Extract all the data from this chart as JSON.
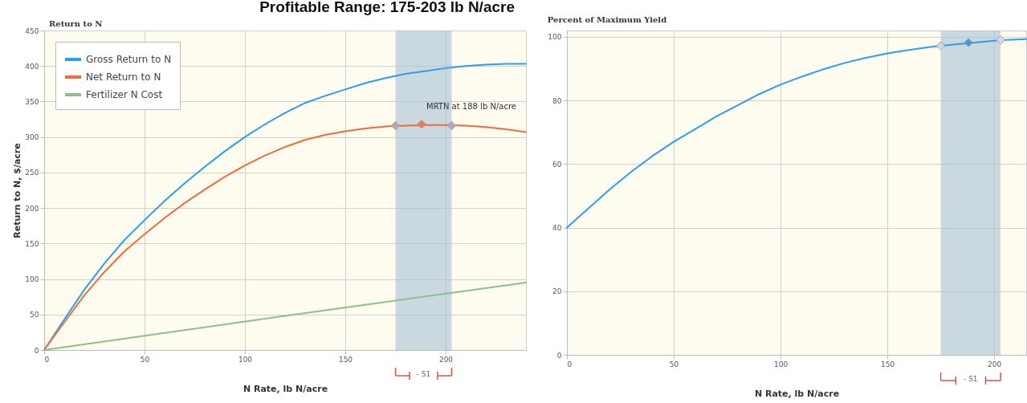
{
  "chart_data": [
    {
      "type": "line",
      "title": "Profitable Range: 175-203 lb N/acre",
      "subtitle": "Return to N",
      "xlabel": "N Rate, lb N/acre",
      "ylabel": "Return to N, $/acre",
      "xlim": [
        0,
        240
      ],
      "ylim": [
        0,
        450
      ],
      "xticks": [
        0,
        50,
        100,
        150,
        200
      ],
      "yticks": [
        0,
        50,
        100,
        150,
        200,
        250,
        300,
        350,
        400,
        450
      ],
      "grid": true,
      "legend": "top left",
      "line_style": "solid",
      "marker": "none",
      "series": [
        {
          "name": "Gross Return to N",
          "color": "#2a9df4",
          "x": [
            0,
            10,
            20,
            30,
            40,
            50,
            60,
            70,
            80,
            90,
            100,
            110,
            120,
            130,
            140,
            150,
            160,
            170,
            180,
            190,
            200,
            210,
            220,
            230,
            240
          ],
          "values": [
            0,
            43,
            85,
            122,
            155,
            183,
            210,
            235,
            258,
            280,
            300,
            318,
            334,
            348,
            358,
            367,
            376,
            383,
            389,
            393,
            397,
            400,
            402,
            403,
            403
          ]
        },
        {
          "name": "Net Return to N",
          "color": "#f26b3a",
          "x": [
            0,
            10,
            20,
            30,
            40,
            50,
            60,
            70,
            80,
            90,
            100,
            110,
            120,
            130,
            140,
            150,
            160,
            170,
            180,
            190,
            200,
            210,
            220,
            230,
            240
          ],
          "values": [
            0,
            39,
            77,
            110,
            139,
            163,
            186,
            207,
            226,
            244,
            260,
            274,
            286,
            296,
            303,
            308,
            312,
            315,
            316,
            317,
            317,
            316,
            314,
            311,
            307
          ]
        },
        {
          "name": "Fertilizer N Cost",
          "color": "#8cc08a",
          "x": [
            0,
            120,
            240
          ],
          "values": [
            0,
            48,
            95
          ]
        },
        {
          "type": "scatter",
          "marker": "diamond",
          "x": [
            175,
            188,
            203
          ],
          "values": [
            316,
            318,
            316
          ],
          "colors": [
            "#b9a3bd",
            "#f07a50",
            "#b9a3bd"
          ]
        }
      ],
      "bands": [
        {
          "axis": "x",
          "from": 175,
          "to": 203,
          "color": "#a9bfd6"
        }
      ],
      "annotations": [
        {
          "text": "MRTN at 188 lb N/acre",
          "x": 188,
          "y": 318
        },
        "- S1"
      ]
    },
    {
      "type": "line",
      "title": "Percent of Maximum Yield",
      "xlabel": "N Rate, lb N/acre",
      "xlim": [
        0,
        215
      ],
      "ylim": [
        0,
        102
      ],
      "xticks": [
        0,
        50,
        100,
        150,
        200
      ],
      "yticks": [
        0,
        20,
        40,
        60,
        80,
        100
      ],
      "grid": true,
      "line_style": "solid",
      "marker": "none",
      "series": [
        {
          "color": "#2a9df4",
          "x": [
            0,
            10,
            20,
            30,
            40,
            50,
            60,
            70,
            80,
            90,
            100,
            110,
            120,
            130,
            140,
            150,
            160,
            170,
            175,
            188,
            200,
            203,
            215
          ],
          "values": [
            40,
            46,
            52,
            57.5,
            62.5,
            67,
            71,
            75,
            78.5,
            82,
            85,
            87.5,
            89.8,
            91.8,
            93.4,
            94.8,
            95.9,
            96.8,
            97.2,
            98,
            98.8,
            99,
            99.3
          ]
        },
        {
          "type": "scatter",
          "marker": "diamond",
          "x": [
            175,
            188,
            203
          ],
          "values": [
            97.2,
            98.2,
            99
          ],
          "colors": [
            "#d9d3e6",
            "#3a9fe6",
            "#d9d3e6"
          ]
        }
      ],
      "bands": [
        {
          "axis": "x",
          "from": 175,
          "to": 203,
          "color": "#a9bfd6"
        }
      ],
      "annotations": [
        "- S1"
      ]
    }
  ]
}
